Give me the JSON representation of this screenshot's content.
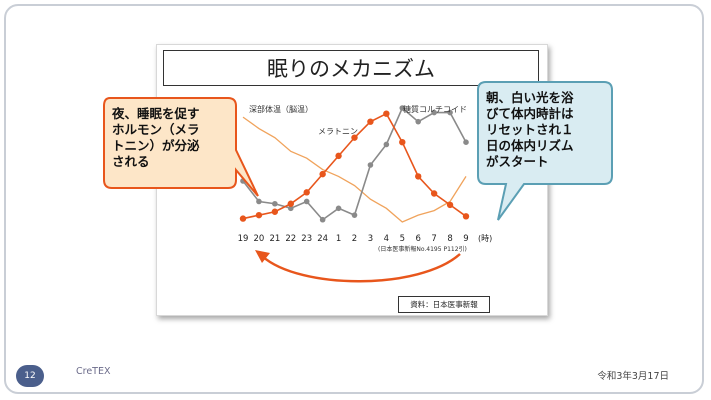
{
  "chart_data": {
    "type": "line",
    "title": "眠りのメカニズム",
    "xlabel": "(時)",
    "categories": [
      "19",
      "20",
      "21",
      "22",
      "23",
      "24",
      "1",
      "2",
      "3",
      "4",
      "5",
      "6",
      "7",
      "8",
      "9"
    ],
    "series": [
      {
        "name": "メラトニン",
        "color": "#e8561c",
        "values": [
          3,
          6,
          9,
          16,
          26,
          42,
          58,
          74,
          88,
          95,
          70,
          40,
          25,
          15,
          5
        ]
      },
      {
        "name": "糖質コルチコイド",
        "color": "#8a8a8a",
        "values": [
          36,
          18,
          16,
          12,
          18,
          2,
          12,
          6,
          50,
          68,
          100,
          88,
          96,
          96,
          70
        ]
      },
      {
        "name": "深部体温（脳温）",
        "color": "#f0a35c",
        "values": [
          92,
          82,
          74,
          62,
          56,
          46,
          40,
          32,
          20,
          12,
          0,
          6,
          10,
          18,
          40
        ]
      }
    ],
    "ylim": [
      0,
      100
    ],
    "annotation_note": "(日本医事新報No.4195 P112引)",
    "source": "資料：日本医事新報"
  },
  "callouts": {
    "left": "夜、睡眠を促す\nホルモン（メラ\nトニン）が分泌\nされる",
    "right": "朝、白い光を浴\nびて体内時計は\nリセットされ１\n日の体内リズム\nがスタート"
  },
  "footer": {
    "page_number": "12",
    "brand": "CreTEX",
    "date": "令和3年3月17日"
  },
  "colors": {
    "callout_left_fill": "#fde6c8",
    "callout_left_border": "#e8561c",
    "callout_right_fill": "#d9ecf2",
    "callout_right_border": "#5b9fb4",
    "cycle_arrow": "#e8561c"
  }
}
